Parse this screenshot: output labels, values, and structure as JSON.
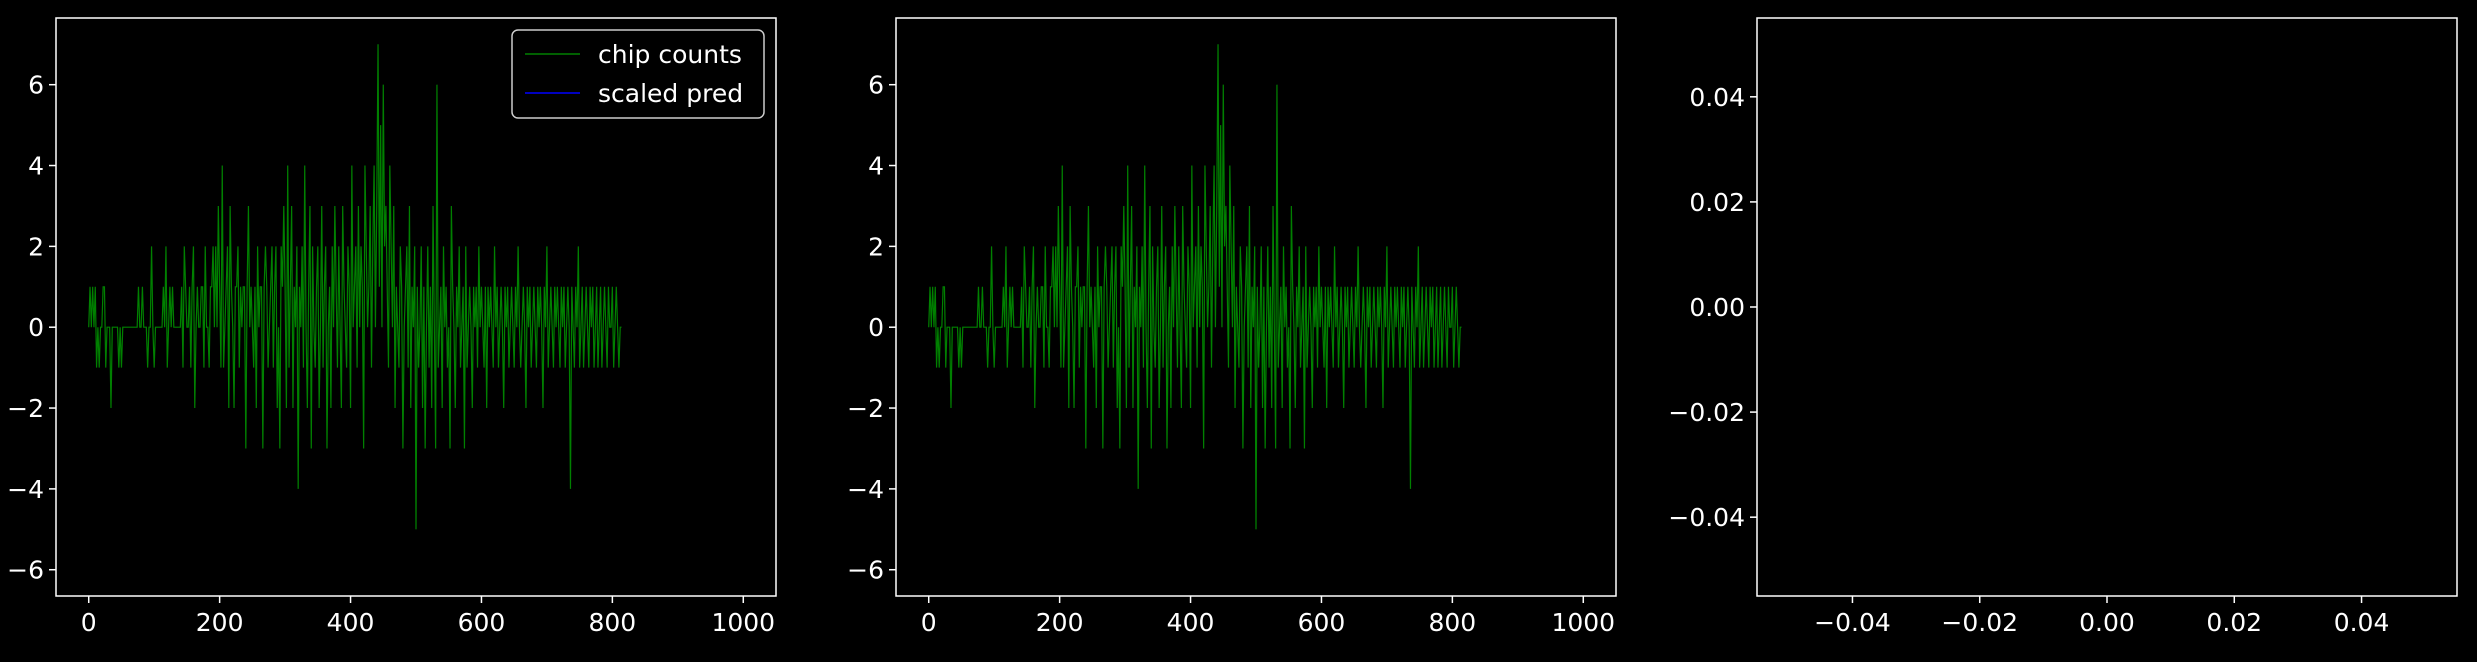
{
  "figure": {
    "background": "#000000",
    "foreground": "#ffffff"
  },
  "chart_data": [
    {
      "type": "line",
      "title": "",
      "xlabel": "",
      "ylabel": "",
      "xlim": [
        -50,
        1050
      ],
      "ylim": [
        -6.65,
        7.65
      ],
      "xticks": [
        0,
        200,
        400,
        600,
        800,
        1000
      ],
      "yticks": [
        -6,
        -4,
        -2,
        0,
        2,
        4,
        6
      ],
      "x_tick_labels": [
        "0",
        "200",
        "400",
        "600",
        "800",
        "1000"
      ],
      "y_tick_labels": [
        "−6",
        "−4",
        "−2",
        "0",
        "2",
        "4",
        "6"
      ],
      "grid": false,
      "legend": "top-right",
      "series": [
        {
          "name": "chip counts",
          "color": "#008000",
          "source": "chip_counts"
        },
        {
          "name": "scaled pred",
          "color": "#0000ff",
          "source": "none"
        }
      ]
    },
    {
      "type": "line",
      "title": "",
      "xlabel": "",
      "ylabel": "",
      "xlim": [
        -50,
        1050
      ],
      "ylim": [
        -6.65,
        7.65
      ],
      "xticks": [
        0,
        200,
        400,
        600,
        800,
        1000
      ],
      "yticks": [
        -6,
        -4,
        -2,
        0,
        2,
        4,
        6
      ],
      "x_tick_labels": [
        "0",
        "200",
        "400",
        "600",
        "800",
        "1000"
      ],
      "y_tick_labels": [
        "−6",
        "−4",
        "−2",
        "0",
        "2",
        "4",
        "6"
      ],
      "grid": false,
      "legend": "none",
      "series": [
        {
          "color": "#008000",
          "source": "chip_counts"
        }
      ]
    },
    {
      "type": "line",
      "title": "",
      "xlabel": "",
      "ylabel": "",
      "xlim": [
        -0.055,
        0.055
      ],
      "ylim": [
        -0.055,
        0.055
      ],
      "xticks": [
        -0.04,
        -0.02,
        0,
        0.02,
        0.04
      ],
      "yticks": [
        -0.04,
        -0.02,
        0,
        0.02,
        0.04
      ],
      "x_tick_labels": [
        "−0.04",
        "−0.02",
        "0.00",
        "0.02",
        "0.04"
      ],
      "y_tick_labels": [
        "−0.04",
        "−0.02",
        "0.00",
        "0.02",
        "0.04"
      ],
      "grid": false,
      "legend": "none",
      "series": []
    }
  ],
  "chip_counts": {
    "x_start": 0,
    "x_step": 2,
    "values": [
      0,
      1,
      0,
      1,
      0,
      1,
      -1,
      0,
      -1,
      0,
      0,
      1,
      1,
      -1,
      0,
      0,
      0,
      -2,
      0,
      0,
      0,
      0,
      0,
      -1,
      0,
      -1,
      0,
      0,
      0,
      0,
      0,
      0,
      0,
      0,
      0,
      0,
      0,
      0,
      1,
      0,
      0,
      1,
      0,
      0,
      0,
      -1,
      0,
      0,
      2,
      0,
      -1,
      0,
      0,
      0,
      0,
      0,
      0,
      1,
      0,
      2,
      -1,
      0,
      1,
      0,
      1,
      0,
      0,
      0,
      0,
      0,
      0,
      1,
      -1,
      2,
      1,
      0,
      0,
      1,
      -1,
      1,
      2,
      -2,
      0,
      1,
      0,
      0,
      1,
      1,
      -1,
      2,
      0,
      0,
      -1,
      1,
      1,
      2,
      0,
      2,
      0,
      3,
      1,
      -1,
      4,
      -1,
      0,
      1,
      2,
      -2,
      3,
      1,
      0,
      -2,
      1,
      1,
      2,
      -1,
      1,
      0,
      1,
      1,
      -3,
      1,
      3,
      0,
      1,
      0,
      -1,
      1,
      -2,
      2,
      0,
      1,
      1,
      -3,
      1,
      2,
      1,
      -1,
      0,
      1,
      2,
      -1,
      1,
      2,
      -2,
      0,
      -3,
      2,
      1,
      3,
      1,
      -2,
      4,
      -1,
      1,
      3,
      -2,
      1,
      0,
      2,
      -4,
      1,
      0,
      2,
      -1,
      4,
      0,
      -2,
      1,
      3,
      -3,
      2,
      0,
      -1,
      1,
      2,
      -2,
      0,
      3,
      -1,
      1,
      2,
      -3,
      0,
      1,
      -2,
      2,
      0,
      3,
      1,
      -1,
      2,
      0,
      -2,
      3,
      1,
      0,
      -1,
      2,
      1,
      -2,
      4,
      0,
      1,
      2,
      -1,
      3,
      0,
      2,
      1,
      -3,
      4,
      2,
      0,
      1,
      3,
      -1,
      2,
      4,
      0,
      3,
      7,
      1,
      5,
      0,
      6,
      2,
      3,
      1,
      -1,
      4,
      2,
      0,
      3,
      -2,
      1,
      0,
      -1,
      2,
      1,
      -3,
      0,
      1,
      2,
      -1,
      3,
      -2,
      1,
      0,
      2,
      -5,
      1,
      -1,
      0,
      2,
      -2,
      1,
      -3,
      0,
      2,
      -1,
      1,
      -2,
      3,
      0,
      -3,
      6,
      -1,
      0,
      1,
      -2,
      2,
      0,
      1,
      -1,
      0,
      -3,
      3,
      1,
      0,
      -2,
      1,
      0,
      2,
      -1,
      0,
      1,
      -3,
      2,
      -1,
      0,
      1,
      0,
      -2,
      1,
      0,
      1,
      -1,
      2,
      0,
      1,
      0,
      -1,
      1,
      -2,
      1,
      0,
      1,
      0,
      -1,
      2,
      0,
      1,
      -1,
      0,
      1,
      0,
      -2,
      1,
      0,
      1,
      -1,
      0,
      1,
      0,
      -1,
      1,
      0,
      2,
      0,
      -1,
      0,
      1,
      0,
      -2,
      1,
      0,
      1,
      -1,
      0,
      1,
      0,
      -1,
      1,
      0,
      1,
      0,
      -2,
      1,
      0,
      2,
      -1,
      0,
      1,
      0,
      -1,
      1,
      0,
      1,
      0,
      -1,
      1,
      0,
      1,
      -1,
      0,
      1,
      0,
      -4,
      1,
      0,
      -1,
      1,
      0,
      2,
      -1,
      0,
      1,
      -1,
      0,
      1,
      0,
      -1,
      1,
      0,
      1,
      -1,
      0,
      1,
      -1,
      0,
      1,
      -1,
      0,
      1,
      0,
      -1,
      1,
      0,
      0,
      1,
      -1,
      0,
      1,
      0,
      -1,
      0,
      0
    ]
  }
}
